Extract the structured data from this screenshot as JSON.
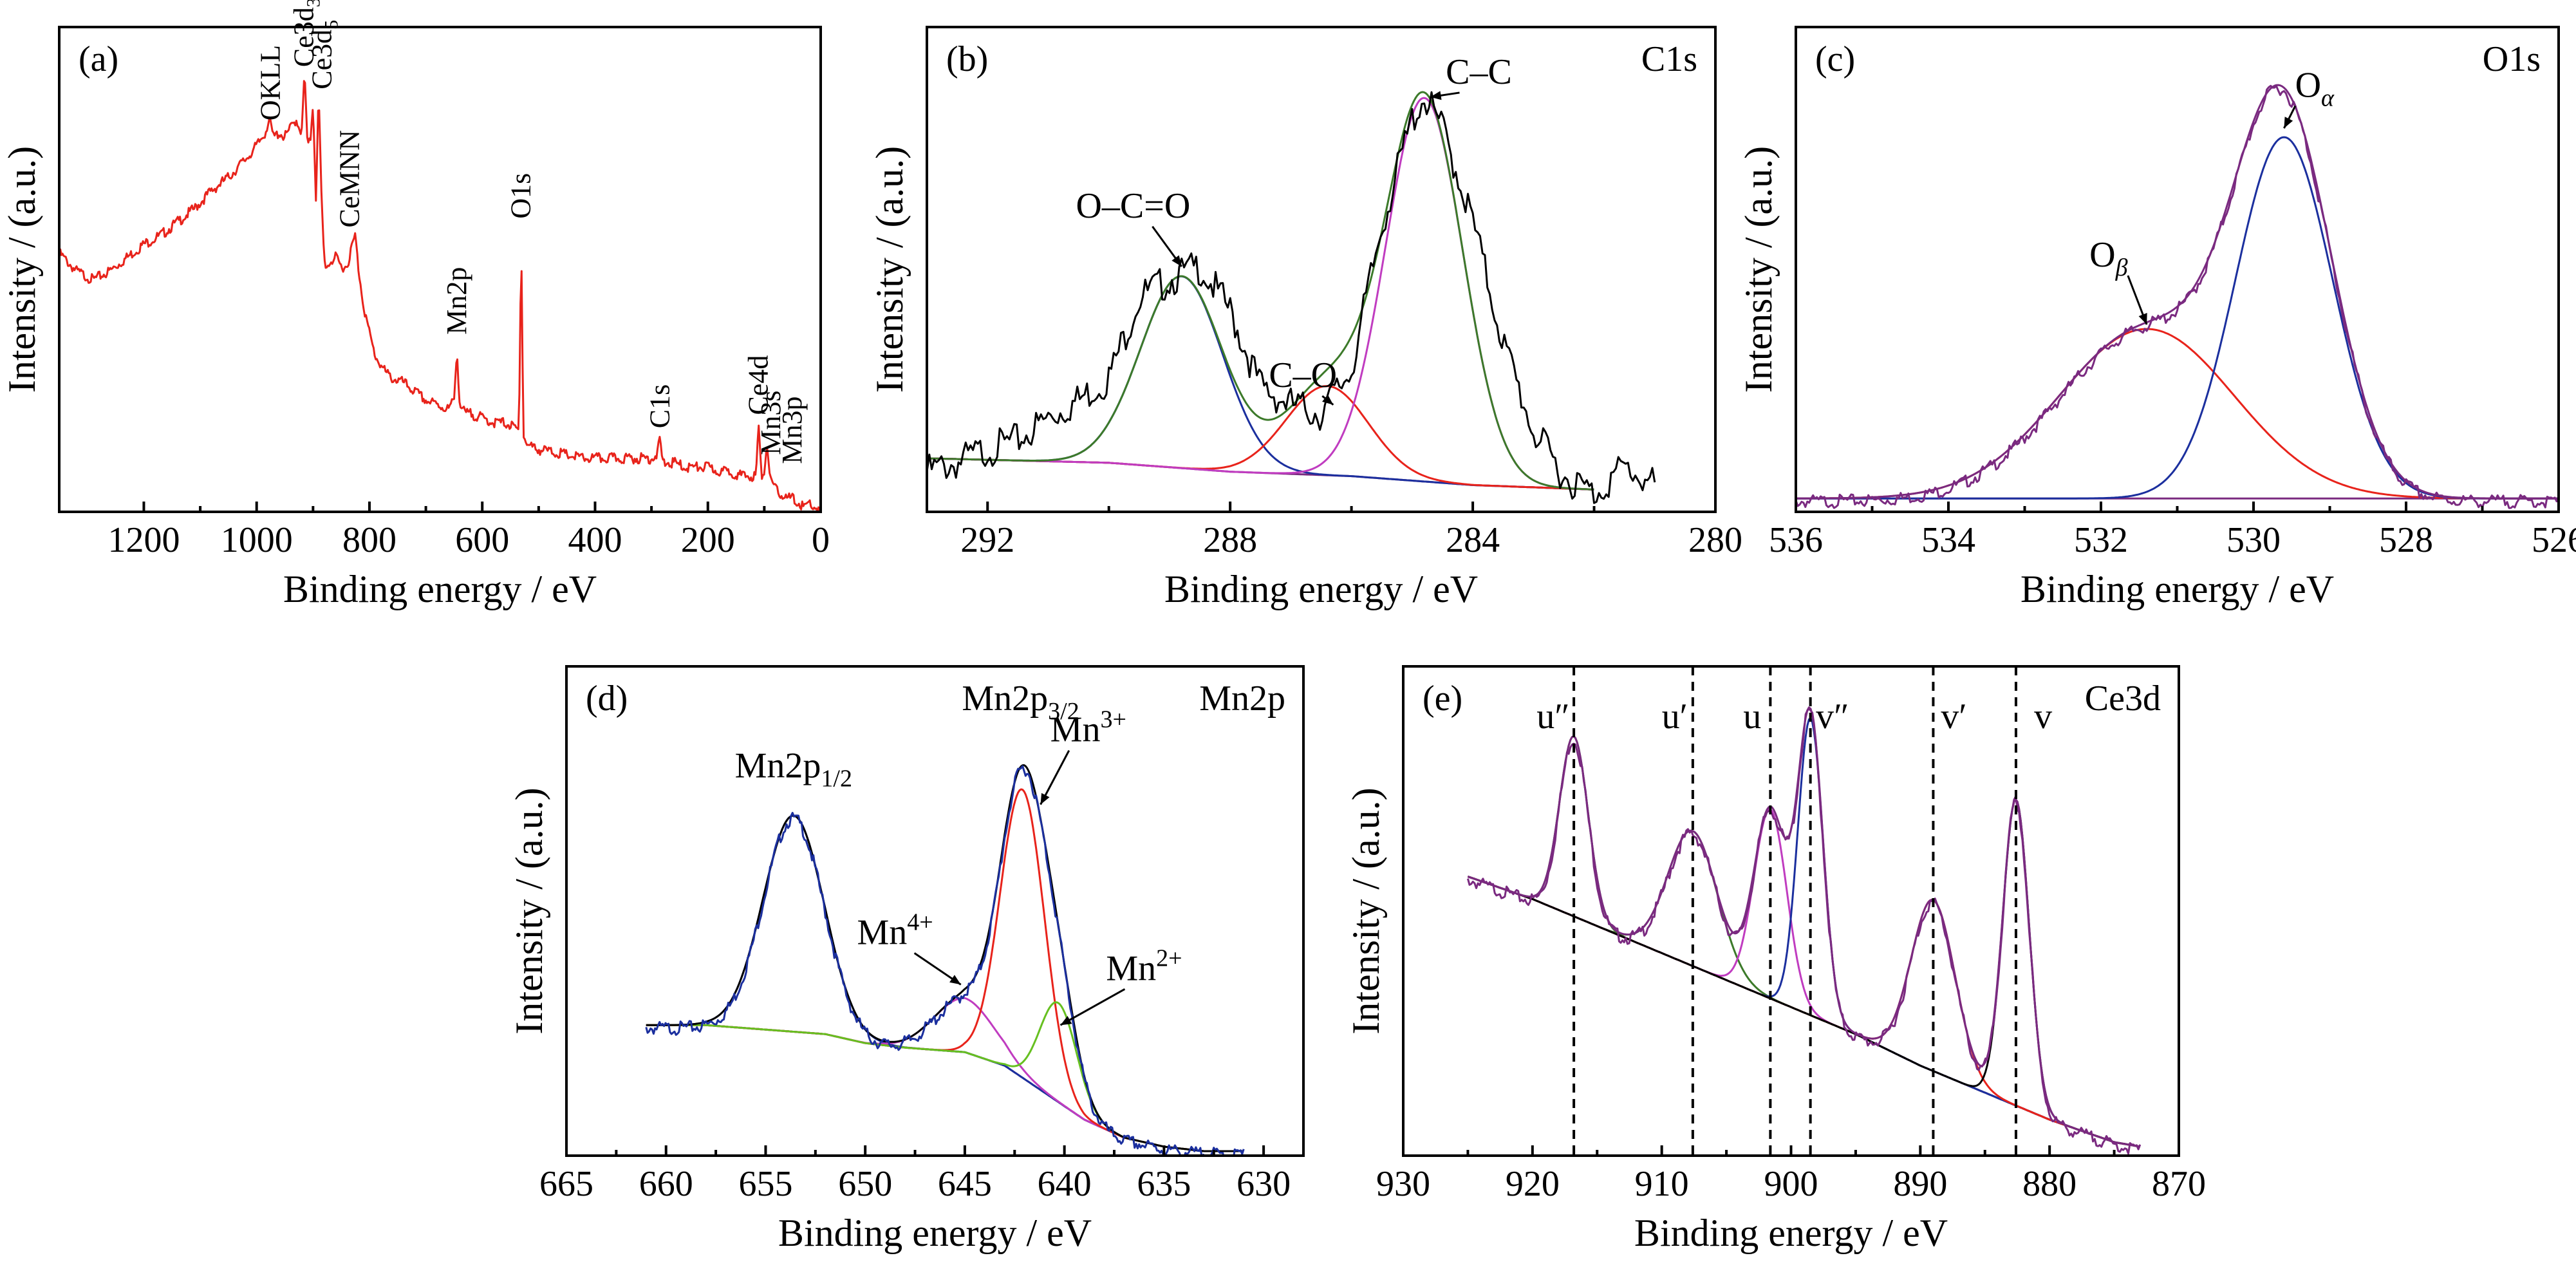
{
  "colors": {
    "survey": "#e8231b",
    "raw": "#000000",
    "fit_green": "#3c7a2a",
    "fit_blue": "#1b2f9e",
    "fit_red": "#e8231b",
    "fit_magenta": "#c03cc0",
    "fit_purple": "#7a2a80",
    "fit_lime": "#66c020",
    "envelope": "#7a2a80"
  },
  "chart_data": [
    {
      "id": "a",
      "type": "line",
      "panel_label": "(a)",
      "title": "",
      "xlabel": "Binding energy / eV",
      "ylabel": "Intensity / (a.u.)",
      "xlim": [
        1350,
        0
      ],
      "ylim": [
        0,
        100
      ],
      "x_ticks": [
        1200,
        1000,
        800,
        600,
        400,
        200,
        0
      ],
      "x_tick_labels": [
        "1200",
        "1000",
        "800",
        "600",
        "400",
        "200",
        "0"
      ],
      "series": [
        {
          "color_key": "survey",
          "x": [
            1350,
            1320,
            1290,
            1260,
            1230,
            1200,
            1170,
            1140,
            1110,
            1080,
            1050,
            1020,
            1000,
            985,
            978,
            970,
            960,
            950,
            940,
            930,
            920,
            915,
            910,
            905,
            900,
            895,
            890,
            885,
            880,
            875,
            870,
            860,
            850,
            840,
            830,
            825,
            820,
            810,
            800,
            790,
            780,
            770,
            760,
            740,
            720,
            700,
            680,
            660,
            650,
            645,
            640,
            630,
            620,
            600,
            580,
            560,
            545,
            535,
            531,
            527,
            520,
            500,
            460,
            420,
            380,
            340,
            300,
            290,
            285,
            280,
            260,
            240,
            220,
            200,
            180,
            160,
            140,
            125,
            115,
            110,
            105,
            100,
            95,
            90,
            85,
            80,
            70,
            60,
            50,
            40,
            30,
            20,
            10,
            0
          ],
          "y": [
            58,
            54,
            52,
            54,
            57,
            60,
            62,
            65,
            68,
            72,
            75,
            79,
            82,
            85,
            88,
            84,
            85,
            84,
            86,
            88,
            85,
            99,
            82,
            83,
            92,
            70,
            94,
            70,
            56,
            55,
            56,
            57,
            55,
            55,
            60,
            62,
            55,
            46,
            40,
            35,
            33,
            31,
            30,
            29,
            27,
            25,
            24,
            23,
            25,
            37,
            24,
            22,
            22,
            21,
            20,
            20,
            19,
            18,
            62,
            17,
            15,
            14,
            13,
            12,
            12,
            12,
            12,
            13,
            16,
            11,
            11,
            10,
            10,
            10,
            9,
            9,
            8,
            8,
            8,
            19,
            8,
            9,
            16,
            7,
            6,
            5,
            4,
            3,
            3,
            2,
            1,
            2,
            1,
            0
          ]
        }
      ],
      "annotations": [
        {
          "text": "OKLL",
          "x": 975,
          "y": 86
        },
        {
          "text": "Ce3d",
          "sub": "3",
          "x": 916,
          "y": 98
        },
        {
          "text": "Ce3d",
          "sub": "5",
          "x": 884,
          "y": 93
        },
        {
          "text": "CeMNN",
          "x": 835,
          "y": 62
        },
        {
          "text": "Mn2p",
          "x": 645,
          "y": 38
        },
        {
          "text": "O1s",
          "x": 531,
          "y": 64
        },
        {
          "text": "C1s",
          "x": 285,
          "y": 17
        },
        {
          "text": "Ce4d",
          "x": 110,
          "y": 20
        },
        {
          "text": "Mn3s",
          "x": 88,
          "y": 11
        },
        {
          "text": "Mn3p",
          "x": 50,
          "y": 9
        }
      ]
    },
    {
      "id": "b",
      "type": "line",
      "panel_label": "(b)",
      "title": "C1s",
      "xlabel": "Binding energy / eV",
      "ylabel": "Intensity / (a.u.)",
      "xlim": [
        293,
        280
      ],
      "ylim": [
        0,
        100
      ],
      "x_ticks": [
        292,
        288,
        284,
        280
      ],
      "x_tick_labels": [
        "292",
        "288",
        "284",
        "280"
      ],
      "raw": {
        "color_key": "raw",
        "x": [
          293,
          292.5,
          292,
          291.5,
          291,
          290.5,
          290,
          289.5,
          289,
          288.5,
          288,
          287.5,
          287,
          286.5,
          286,
          285.5,
          285,
          284.8,
          284.5,
          284,
          283.5,
          283,
          282.5,
          282,
          281.5,
          281
        ],
        "y": [
          11,
          13,
          16,
          18,
          23,
          27,
          32,
          50,
          54,
          57,
          47,
          30,
          26,
          24,
          34,
          66,
          90,
          95,
          88,
          67,
          40,
          20,
          10,
          6,
          12,
          8
        ]
      },
      "baseline": {
        "color_key": "fit_purple",
        "x": [
          293,
          290,
          288,
          286,
          284,
          282
        ],
        "y": [
          12,
          11,
          9,
          8,
          6,
          5
        ]
      },
      "peaks": [
        {
          "label": "O–C=O",
          "color_key": "fit_blue",
          "center": 288.8,
          "fwhm": 1.6,
          "height": 43
        },
        {
          "label": "C–O",
          "color_key": "fit_red",
          "center": 286.4,
          "fwhm": 1.6,
          "height": 20
        },
        {
          "label": "C–C",
          "color_key": "fit_magenta",
          "center": 284.8,
          "fwhm": 1.5,
          "height": 86
        }
      ],
      "envelope": {
        "color_key": "fit_green"
      },
      "annotations": [
        {
          "text": "O–C=O",
          "x": 289.6,
          "y": 66,
          "arrow_to": [
            288.8,
            55
          ]
        },
        {
          "text": "C–O",
          "x": 286.8,
          "y": 28,
          "arrow_to": [
            286.3,
            24
          ]
        },
        {
          "text": "C–C",
          "x": 283.9,
          "y": 96,
          "arrow_to": [
            284.7,
            93
          ]
        }
      ]
    },
    {
      "id": "c",
      "type": "line",
      "panel_label": "(c)",
      "title": "O1s",
      "xlabel": "Binding energy / eV",
      "ylabel": "Intensity / (a.u.)",
      "xlim": [
        536,
        526
      ],
      "ylim": [
        0,
        100
      ],
      "x_ticks": [
        536,
        534,
        532,
        530,
        528,
        526
      ],
      "x_tick_labels": [
        "536",
        "534",
        "532",
        "530",
        "528",
        "526"
      ],
      "baseline": {
        "color_key": "fit_purple",
        "x": [
          536,
          526
        ],
        "y": [
          3,
          3
        ]
      },
      "peaks": [
        {
          "label": "O_beta",
          "color_key": "fit_red",
          "center": 531.4,
          "fwhm": 2.7,
          "height": 38
        },
        {
          "label": "O_alpha",
          "color_key": "fit_blue",
          "center": 529.6,
          "fwhm": 1.5,
          "height": 81
        }
      ],
      "envelope": {
        "color_key": "envelope"
      },
      "annotations": [
        {
          "text": "O",
          "sub": "β",
          "x": 531.9,
          "y": 55,
          "arrow_to": [
            531.4,
            42
          ]
        },
        {
          "text": "O",
          "sub": "α",
          "x": 529.2,
          "y": 93,
          "arrow_to": [
            529.6,
            86
          ]
        }
      ]
    },
    {
      "id": "d",
      "type": "line",
      "panel_label": "(d)",
      "title": "Mn2p",
      "xlabel": "Binding energy / eV",
      "ylabel": "Intensity / (a.u.)",
      "xlim": [
        665,
        628
      ],
      "ylim": [
        0,
        100
      ],
      "x_ticks": [
        665,
        660,
        655,
        650,
        645,
        640,
        635,
        630
      ],
      "x_tick_labels": [
        "665",
        "660",
        "655",
        "650",
        "645",
        "640",
        "635",
        "630"
      ],
      "baseline": {
        "color_key": "fit_purple",
        "x": [
          661,
          658,
          655,
          652,
          650,
          648,
          645,
          643,
          641,
          639,
          637,
          635,
          633,
          631
        ],
        "y": [
          29,
          29,
          28,
          27,
          25,
          24,
          23,
          20,
          14,
          8,
          4,
          2,
          1,
          1
        ]
      },
      "peaks": [
        {
          "label": "Mn2p1/2",
          "color_key": "fit_blue",
          "center": 653.6,
          "fwhm": 3.6,
          "height": 48
        },
        {
          "label": "Mn4+",
          "color_key": "fit_magenta",
          "center": 645.0,
          "fwhm": 3.6,
          "height": 12
        },
        {
          "label": "Mn3+",
          "color_key": "fit_red",
          "center": 642.1,
          "fwhm": 2.6,
          "height": 64
        },
        {
          "label": "Mn2+",
          "color_key": "fit_lime",
          "center": 640.3,
          "fwhm": 2.2,
          "height": 22
        }
      ],
      "envelope": {
        "color_key": "raw"
      },
      "annotations": [
        {
          "text": "Mn2p",
          "sub": "1/2",
          "x": 653.6,
          "y": 84
        },
        {
          "text": "Mn2p",
          "sub": "3/2",
          "x": 642.2,
          "y": 99
        },
        {
          "text": "Mn",
          "sup": "3+",
          "x": 638.8,
          "y": 92,
          "arrow_to": [
            641.2,
            78
          ]
        },
        {
          "text": "Mn",
          "sup": "4+",
          "x": 648.5,
          "y": 47,
          "arrow_to": [
            645.2,
            38
          ]
        },
        {
          "text": "Mn",
          "sup": "2+",
          "x": 636.0,
          "y": 39,
          "arrow_to": [
            640.2,
            29
          ]
        }
      ]
    },
    {
      "id": "e",
      "type": "line",
      "panel_label": "(e)",
      "title": "Ce3d",
      "xlabel": "Binding energy / eV",
      "ylabel": "Intensity / (a.u.)",
      "xlim": [
        930,
        870
      ],
      "ylim": [
        0,
        100
      ],
      "x_ticks": [
        930,
        920,
        910,
        900,
        890,
        880,
        870
      ],
      "x_tick_labels": [
        "930",
        "920",
        "910",
        "900",
        "890",
        "880",
        "870"
      ],
      "baseline": {
        "color_key": "fit_purple",
        "x": [
          925,
          920,
          915,
          910,
          905,
          900,
          895,
          890,
          885,
          880,
          875,
          873
        ],
        "y": [
          62,
          57,
          51,
          45,
          39,
          33,
          27,
          20,
          14,
          8,
          3,
          2
        ]
      },
      "peaks": [
        {
          "label": "u''",
          "color_key": "fit_green",
          "center": 916.8,
          "fwhm": 2.6,
          "height": 40
        },
        {
          "label": "u'",
          "color_key": "fit_green",
          "center": 907.6,
          "fwhm": 4.5,
          "height": 30
        },
        {
          "label": "u",
          "color_key": "fit_magenta",
          "center": 901.6,
          "fwhm": 3.0,
          "height": 42
        },
        {
          "label": "v''",
          "color_key": "fit_blue",
          "center": 898.5,
          "fwhm": 2.3,
          "height": 66
        },
        {
          "label": "v'",
          "color_key": "fit_red",
          "center": 889.0,
          "fwhm": 4.0,
          "height": 38
        },
        {
          "label": "v",
          "color_key": "raw",
          "center": 882.6,
          "fwhm": 2.4,
          "height": 68
        }
      ],
      "envelope": {
        "color_key": "envelope"
      },
      "dashed_lines_x": [
        916.8,
        907.6,
        901.6,
        898.5,
        889.0,
        882.6
      ],
      "annotations": [
        {
          "text": "u″",
          "x": 918.4,
          "y": 95
        },
        {
          "text": "u′",
          "x": 909.0,
          "y": 95
        },
        {
          "text": "u",
          "x": 903.0,
          "y": 95
        },
        {
          "text": "v″",
          "x": 896.8,
          "y": 95
        },
        {
          "text": "v′",
          "x": 887.4,
          "y": 95
        },
        {
          "text": "v",
          "x": 880.5,
          "y": 95
        }
      ]
    }
  ]
}
